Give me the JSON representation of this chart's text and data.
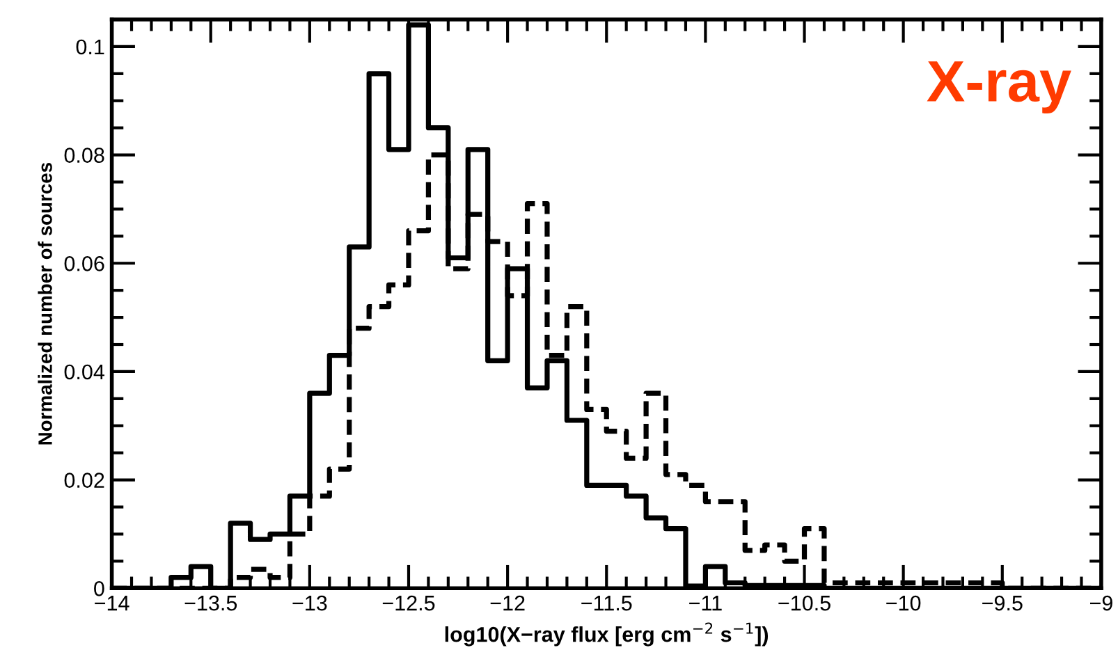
{
  "chart_data": {
    "type": "histogram",
    "xlabel": "log10(X−ray flux [erg cm$^{−2}$ s$^{−1}$])",
    "ylabel": "Normalized number of sources",
    "annotations": [
      "X-ray"
    ],
    "bins": [
      -14.0,
      -13.9,
      -13.8,
      -13.7,
      -13.6,
      -13.5,
      -13.4,
      -13.3,
      -13.2,
      -13.1,
      -13.0,
      -12.9,
      -12.8,
      -12.7,
      -12.6,
      -12.5,
      -12.4,
      -12.3,
      -12.2,
      -12.1,
      -12.0,
      -11.9,
      -11.8,
      -11.7,
      -11.6,
      -11.5,
      -11.4,
      -11.3,
      -11.2,
      -11.1,
      -11.0,
      -10.9,
      -10.8,
      -10.7,
      -10.6,
      -10.5,
      -10.4,
      -10.3,
      -10.2,
      -10.1,
      -10.0,
      -9.9,
      -9.8,
      -9.7,
      -9.6,
      -9.5,
      -9.4,
      -9.3,
      -9.2,
      -9.1,
      -9.0
    ],
    "series": [
      {
        "color": "#000000",
        "line_style": "solid",
        "values": [
          0,
          0,
          0,
          0.002,
          0.004,
          0,
          0.012,
          0.009,
          0.01,
          0.017,
          0.036,
          0.043,
          0.063,
          0.095,
          0.081,
          0.104,
          0.085,
          0.061,
          0.081,
          0.042,
          0.059,
          0.037,
          0.042,
          0.031,
          0.019,
          0.019,
          0.017,
          0.013,
          0.011,
          0.0004,
          0.004,
          0.001,
          0.0005,
          0.0005,
          0.0005,
          0.0005,
          0,
          0,
          0,
          0,
          0,
          0,
          0,
          0,
          0,
          0,
          0,
          0,
          0,
          0
        ]
      },
      {
        "color": "#000000",
        "line_style": "dashed",
        "values": [
          0,
          0,
          0,
          0,
          0,
          0,
          0.002,
          0.0035,
          0.002,
          0.01,
          0.017,
          0.022,
          0.048,
          0.052,
          0.056,
          0.066,
          0.08,
          0.059,
          0.069,
          0.064,
          0.054,
          0.071,
          0.043,
          0.052,
          0.033,
          0.029,
          0.024,
          0.036,
          0.021,
          0.019,
          0.016,
          0.016,
          0.007,
          0.008,
          0.005,
          0.011,
          0.001,
          0.001,
          0.001,
          0.001,
          0.001,
          0.001,
          0.001,
          0.001,
          0.001,
          0,
          0,
          0,
          0,
          0
        ]
      }
    ],
    "xlim": [
      -14,
      -9
    ],
    "ylim": [
      0,
      0.105
    ],
    "xticks": [
      -14,
      -13.5,
      -13,
      -12.5,
      -12,
      -11.5,
      -11,
      -10.5,
      -10,
      -9.5,
      -9
    ],
    "yticks": [
      0,
      0.02,
      0.04,
      0.06,
      0.08,
      0.1
    ],
    "grid": false,
    "legend": false
  }
}
